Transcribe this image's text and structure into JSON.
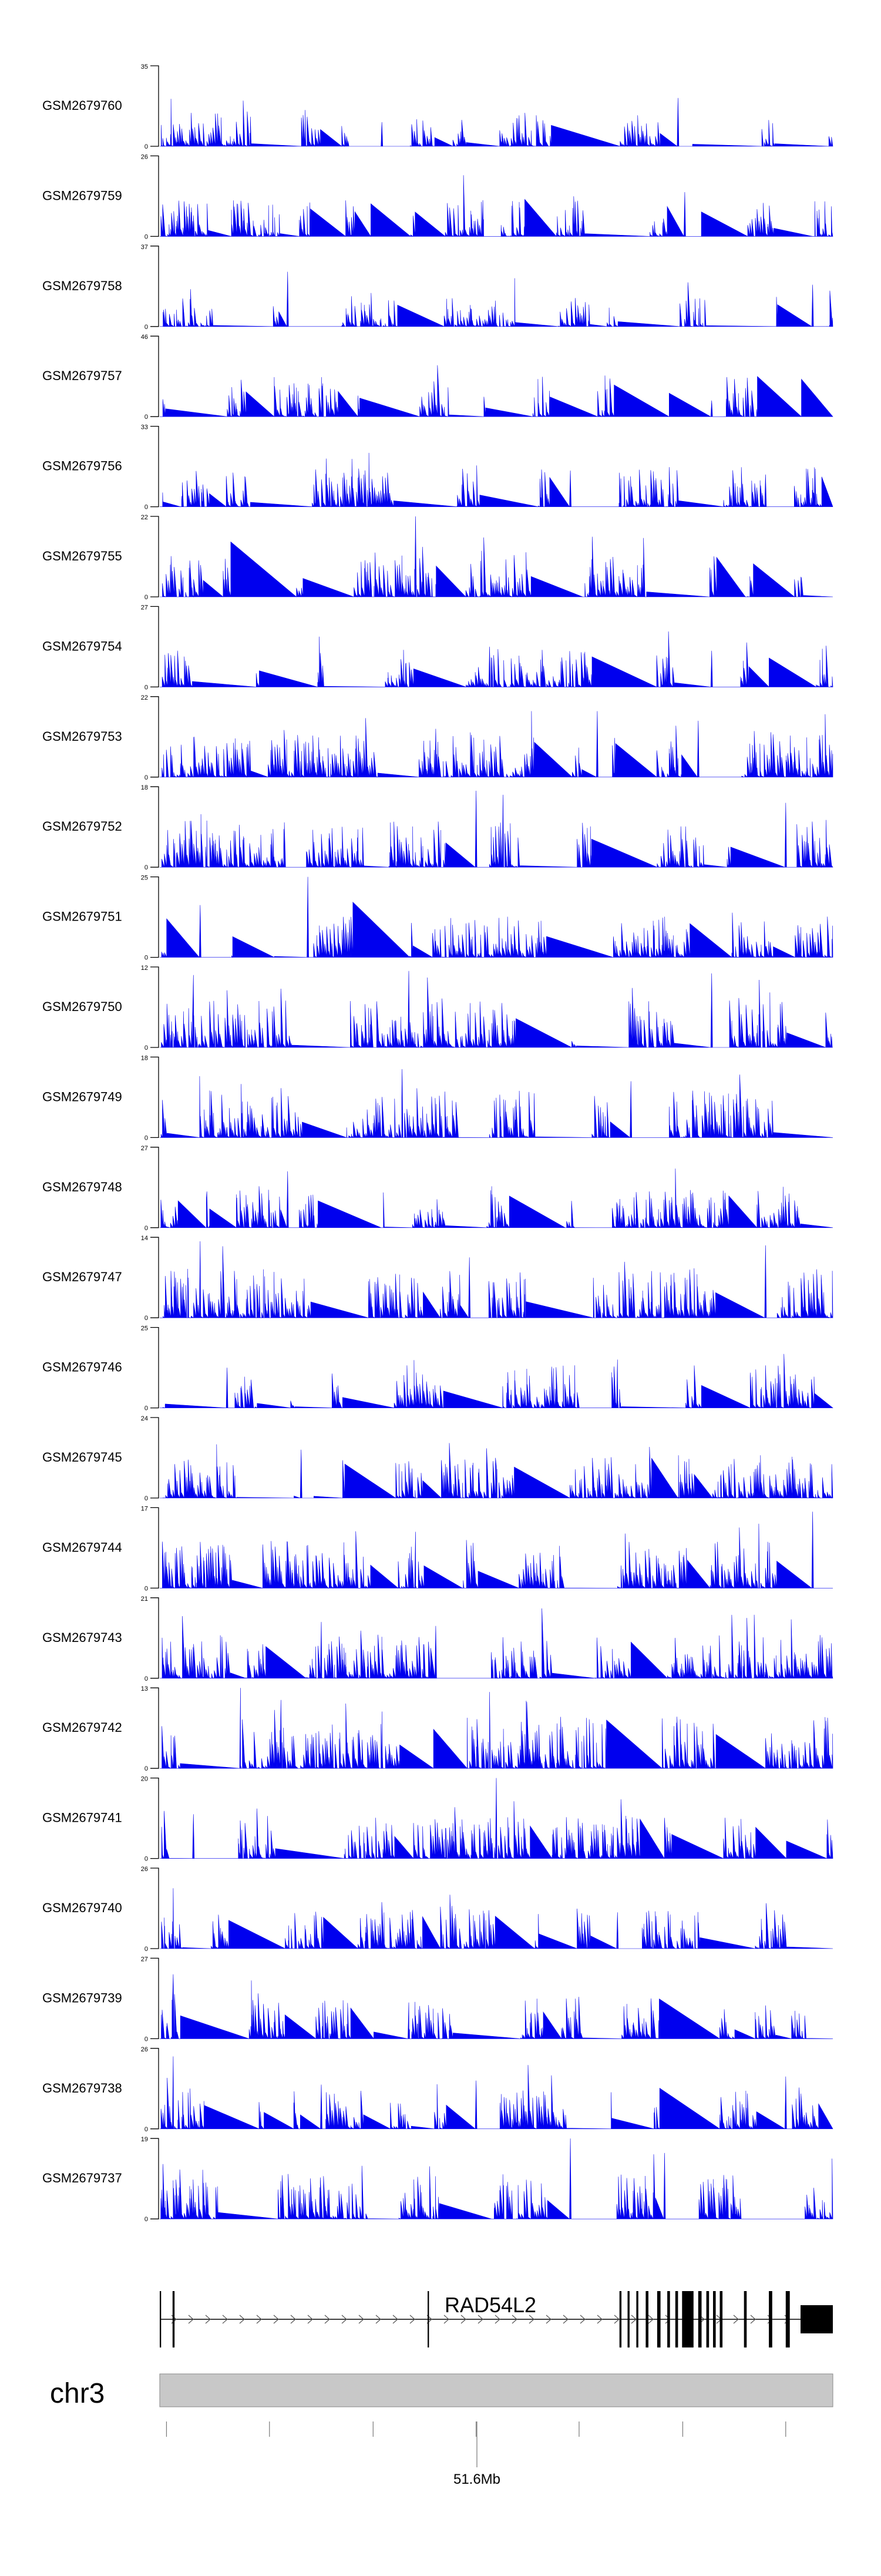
{
  "chart_data": {
    "type": "area",
    "title": "",
    "xlabel": "",
    "ylabel": "",
    "x_unit": "Mb",
    "chromosome": "chr3",
    "axis_tick_label": "51.6Mb",
    "grid": false,
    "legend": "none",
    "colors": {
      "fill": "#0000ee",
      "axis": "#000000",
      "ideogram": "#c8c8c8",
      "gene": "#000000"
    },
    "gene": {
      "name": "RAD54L2",
      "strand": "+",
      "exons": [
        [
          0.0,
          0.002
        ],
        [
          0.019,
          0.022
        ],
        [
          0.398,
          0.4
        ],
        [
          0.683,
          0.686
        ],
        [
          0.695,
          0.698
        ],
        [
          0.708,
          0.711
        ],
        [
          0.722,
          0.726
        ],
        [
          0.739,
          0.744
        ],
        [
          0.754,
          0.758
        ],
        [
          0.766,
          0.77
        ],
        [
          0.776,
          0.793
        ],
        [
          0.8,
          0.805
        ],
        [
          0.812,
          0.816
        ],
        [
          0.822,
          0.826
        ],
        [
          0.832,
          0.836
        ],
        [
          0.868,
          0.872
        ],
        [
          0.905,
          0.91
        ],
        [
          0.93,
          0.936
        ],
        [
          0.952,
          1.0
        ]
      ]
    },
    "tracks": [
      {
        "name": "GSM2679760",
        "ymax": "35",
        "seed": 1,
        "density": 0.55,
        "peaks": [
          [
            0.77,
            0.6
          ],
          [
            0.33,
            0.3
          ]
        ]
      },
      {
        "name": "GSM2679759",
        "ymax": "26",
        "seed": 2,
        "density": 0.6,
        "peaks": [
          [
            0.78,
            0.55
          ],
          [
            0.48,
            0.45
          ]
        ]
      },
      {
        "name": "GSM2679758",
        "ymax": "37",
        "seed": 3,
        "density": 0.45,
        "peaks": [
          [
            0.19,
            0.68
          ],
          [
            0.97,
            0.52
          ]
        ]
      },
      {
        "name": "GSM2679757",
        "ymax": "46",
        "seed": 4,
        "density": 0.7,
        "peaks": [
          [
            0.82,
            0.2
          ]
        ]
      },
      {
        "name": "GSM2679756",
        "ymax": "33",
        "seed": 5,
        "density": 0.65,
        "peaks": [
          [
            0.61,
            0.45
          ],
          [
            0.9,
            0.4
          ]
        ]
      },
      {
        "name": "GSM2679755",
        "ymax": "22",
        "seed": 6,
        "density": 0.75,
        "peaks": [
          [
            0.38,
            1.0
          ],
          [
            0.32,
            0.55
          ]
        ]
      },
      {
        "name": "GSM2679754",
        "ymax": "27",
        "seed": 7,
        "density": 0.65,
        "peaks": [
          [
            0.49,
            0.5
          ],
          [
            0.82,
            0.45
          ]
        ]
      },
      {
        "name": "GSM2679753",
        "ymax": "22",
        "seed": 8,
        "density": 0.75,
        "peaks": [
          [
            0.65,
            0.82
          ],
          [
            0.8,
            0.7
          ],
          [
            0.41,
            0.6
          ]
        ]
      },
      {
        "name": "GSM2679752",
        "ymax": "18",
        "seed": 9,
        "density": 0.85,
        "peaks": [
          [
            0.47,
            0.95
          ],
          [
            0.51,
            0.9
          ],
          [
            0.93,
            0.8
          ]
        ]
      },
      {
        "name": "GSM2679751",
        "ymax": "25",
        "seed": 10,
        "density": 0.7,
        "peaks": [
          [
            0.22,
            1.0
          ],
          [
            0.06,
            0.65
          ]
        ]
      },
      {
        "name": "GSM2679750",
        "ymax": "12",
        "seed": 11,
        "density": 0.9,
        "peaks": [
          [
            0.37,
            0.95
          ],
          [
            0.82,
            0.92
          ],
          [
            0.05,
            0.9
          ]
        ]
      },
      {
        "name": "GSM2679749",
        "ymax": "18",
        "seed": 12,
        "density": 0.85,
        "peaks": [
          [
            0.36,
            0.85
          ],
          [
            0.7,
            0.7
          ]
        ]
      },
      {
        "name": "GSM2679748",
        "ymax": "27",
        "seed": 13,
        "density": 0.65,
        "peaks": [
          [
            0.19,
            0.7
          ],
          [
            0.07,
            0.45
          ]
        ]
      },
      {
        "name": "GSM2679747",
        "ymax": "14",
        "seed": 14,
        "density": 0.9,
        "peaks": [
          [
            0.06,
            0.95
          ],
          [
            0.9,
            0.9
          ],
          [
            0.46,
            0.75
          ]
        ]
      },
      {
        "name": "GSM2679746",
        "ymax": "25",
        "seed": 15,
        "density": 0.75,
        "peaks": [
          [
            0.68,
            0.6
          ],
          [
            0.1,
            0.5
          ]
        ]
      },
      {
        "name": "GSM2679745",
        "ymax": "24",
        "seed": 16,
        "density": 0.75,
        "peaks": [
          [
            0.21,
            0.6
          ],
          [
            0.5,
            0.4
          ]
        ]
      },
      {
        "name": "GSM2679744",
        "ymax": "17",
        "seed": 17,
        "density": 0.85,
        "peaks": [
          [
            0.97,
            0.95
          ],
          [
            0.89,
            0.8
          ],
          [
            0.38,
            0.7
          ]
        ]
      },
      {
        "name": "GSM2679743",
        "ymax": "21",
        "seed": 18,
        "density": 0.8,
        "peaks": [
          [
            0.24,
            0.7
          ],
          [
            0.41,
            0.65
          ]
        ]
      },
      {
        "name": "GSM2679742",
        "ymax": "13",
        "seed": 19,
        "density": 0.95,
        "peaks": [
          [
            0.12,
            1.0
          ],
          [
            0.49,
            0.95
          ],
          [
            0.18,
            0.85
          ]
        ]
      },
      {
        "name": "GSM2679741",
        "ymax": "20",
        "seed": 20,
        "density": 0.75,
        "peaks": [
          [
            0.5,
            1.0
          ],
          [
            0.05,
            0.55
          ]
        ]
      },
      {
        "name": "GSM2679740",
        "ymax": "26",
        "seed": 21,
        "density": 0.7,
        "peaks": [
          [
            0.02,
            0.75
          ],
          [
            0.68,
            0.45
          ]
        ]
      },
      {
        "name": "GSM2679739",
        "ymax": "27",
        "seed": 22,
        "density": 0.7,
        "peaks": [
          [
            0.02,
            0.8
          ],
          [
            0.37,
            0.45
          ]
        ]
      },
      {
        "name": "GSM2679738",
        "ymax": "26",
        "seed": 23,
        "density": 0.65,
        "peaks": [
          [
            0.02,
            0.9
          ],
          [
            0.24,
            0.55
          ],
          [
            0.47,
            0.6
          ],
          [
            0.93,
            0.65
          ]
        ]
      },
      {
        "name": "GSM2679737",
        "ymax": "19",
        "seed": 24,
        "density": 0.8,
        "peaks": [
          [
            0.61,
            1.0
          ],
          [
            0.75,
            0.82
          ]
        ]
      }
    ]
  }
}
